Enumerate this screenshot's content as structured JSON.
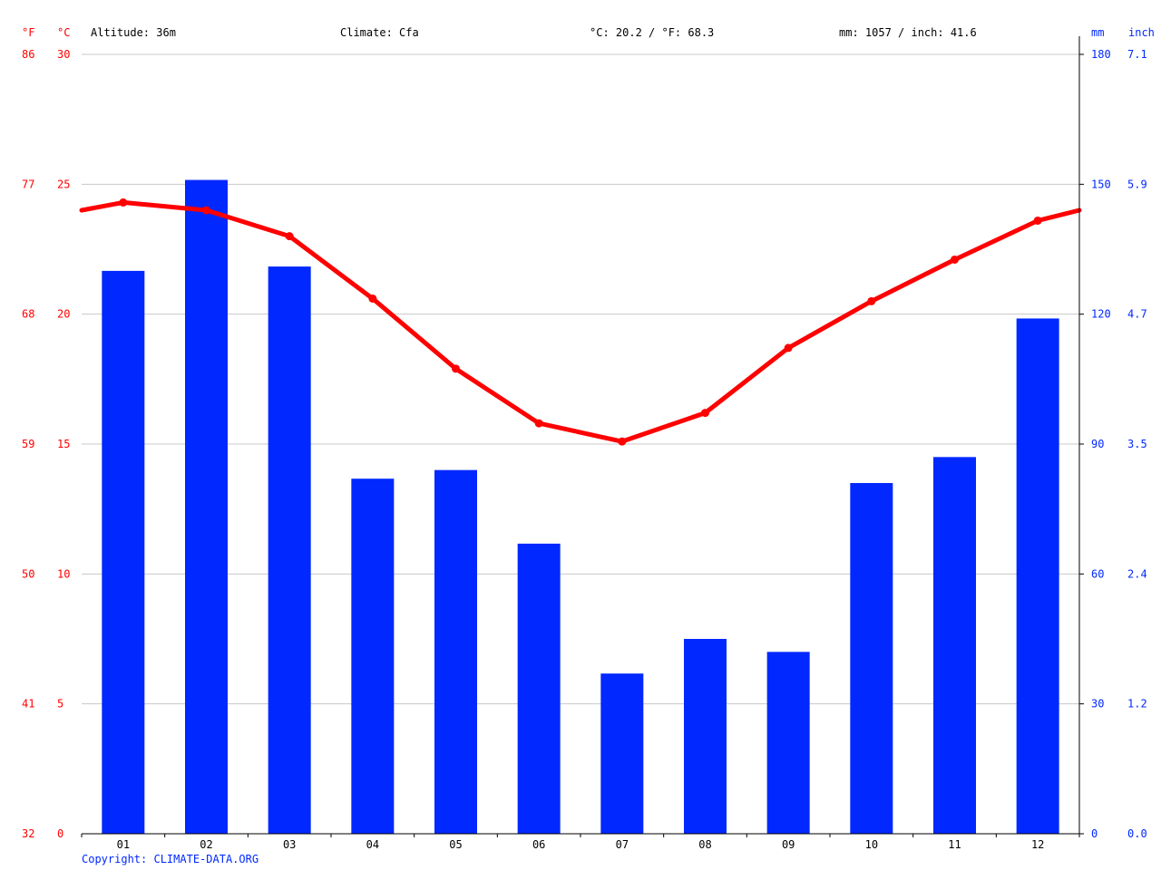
{
  "header": {
    "f_unit": "°F",
    "c_unit": "°C",
    "altitude": "Altitude: 36m",
    "climate": "Climate: Cfa",
    "temp_avg": "°C: 20.2 / °F: 68.3",
    "precip_total": "mm: 1057 / inch: 41.6",
    "mm_unit": "mm",
    "inch_unit": "inch"
  },
  "copyright": "Copyright: CLIMATE-DATA.ORG",
  "colors": {
    "temperature": "#ff0000",
    "precipitation": "#0028ff",
    "grid": "#c8c8c8",
    "axis": "#000000",
    "f_axis_text": "#ff0000",
    "mm_axis_text": "#0028ff"
  },
  "chart_data": {
    "type": "bar+line",
    "categories": [
      "01",
      "02",
      "03",
      "04",
      "05",
      "06",
      "07",
      "08",
      "09",
      "10",
      "11",
      "12"
    ],
    "series": [
      {
        "name": "precipitation",
        "type": "bar",
        "axis": "right",
        "values": [
          130,
          151,
          131,
          82,
          84,
          67,
          37,
          45,
          42,
          81,
          87,
          119
        ]
      },
      {
        "name": "temperature",
        "type": "line",
        "axis": "left",
        "values": [
          24.3,
          24.0,
          23.0,
          20.6,
          17.9,
          15.8,
          15.1,
          16.2,
          18.7,
          20.5,
          22.1,
          23.6
        ]
      }
    ],
    "line_edge_values": [
      24.0,
      24.0
    ],
    "left_axis": {
      "c_ticks": [
        "0",
        "5",
        "10",
        "15",
        "20",
        "25",
        "30"
      ],
      "f_ticks": [
        "32",
        "41",
        "50",
        "59",
        "68",
        "77",
        "86"
      ],
      "range": [
        0,
        30
      ]
    },
    "right_axis": {
      "mm_ticks": [
        "0",
        "30",
        "60",
        "90",
        "120",
        "150",
        "180"
      ],
      "inch_ticks": [
        "0.0",
        "1.2",
        "2.4",
        "3.5",
        "4.7",
        "5.9",
        "7.1"
      ],
      "range": [
        0,
        180
      ]
    },
    "grid": true
  }
}
